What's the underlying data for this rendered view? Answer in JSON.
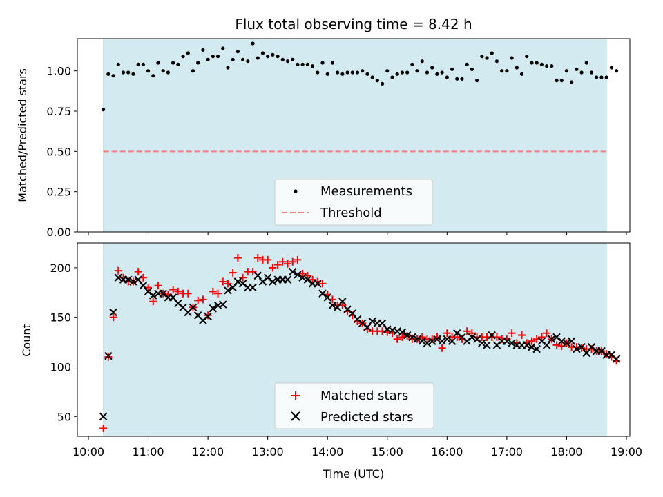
{
  "chart_data": [
    {
      "type": "scatter",
      "title": "Flux total observing time = 8.42 h",
      "ylabel": "Matched/Predicted stars",
      "xlabel": "",
      "x_range": [
        "10:00",
        "19:00"
      ],
      "ylim": [
        0,
        1.2
      ],
      "yticks": [
        "0.00",
        "0.25",
        "0.50",
        "0.75",
        "1.00"
      ],
      "shaded_span": [
        "10:15",
        "18:40"
      ],
      "shade_color": "#add8e6",
      "legend": {
        "placement": "lower-center",
        "entries": [
          "Measurements",
          "Threshold"
        ]
      },
      "series": [
        {
          "name": "Measurements",
          "color": "#000000",
          "marker": "dot",
          "start_time": "10:15",
          "interval_min": 5,
          "values": [
            0.76,
            0.98,
            0.97,
            1.04,
            0.99,
            0.99,
            0.98,
            1.04,
            1.04,
            1.0,
            0.97,
            1.05,
            1.0,
            0.99,
            1.05,
            1.04,
            1.09,
            1.11,
            1.0,
            1.05,
            1.13,
            1.07,
            1.09,
            1.09,
            1.14,
            1.02,
            1.07,
            1.12,
            1.07,
            1.06,
            1.17,
            1.08,
            1.11,
            1.09,
            1.1,
            1.09,
            1.07,
            1.06,
            1.07,
            1.04,
            1.04,
            1.04,
            1.03,
            0.99,
            1.05,
            0.98,
            1.05,
            0.99,
            0.98,
            0.99,
            0.99,
            0.99,
            1.0,
            0.98,
            0.96,
            0.94,
            0.92,
            1.0,
            0.96,
            0.98,
            0.99,
            0.99,
            1.04,
            1.0,
            1.06,
            0.99,
            1.02,
            0.98,
            0.99,
            0.96,
            1.01,
            0.95,
            0.95,
            1.04,
            1.01,
            0.94,
            1.09,
            1.08,
            1.11,
            1.06,
            1.0,
            1.0,
            1.08,
            1.02,
            0.98,
            1.09,
            1.05,
            1.05,
            1.04,
            1.03,
            1.03,
            0.94,
            0.94,
            1.0,
            0.93,
            1.01,
            0.99,
            1.05,
            0.99,
            0.96,
            0.96,
            0.96,
            1.02,
            1.0
          ]
        },
        {
          "name": "Threshold",
          "color": "#f08080",
          "style": "dashed",
          "value": 0.5
        }
      ]
    },
    {
      "type": "scatter",
      "title": "",
      "ylabel": "Count",
      "xlabel": "Time (UTC)",
      "x_range": [
        "10:00",
        "19:00"
      ],
      "xticks": [
        "10:00",
        "11:00",
        "12:00",
        "13:00",
        "14:00",
        "15:00",
        "16:00",
        "17:00",
        "18:00",
        "19:00"
      ],
      "ylim": [
        30,
        225
      ],
      "yticks": [
        "50",
        "100",
        "150",
        "200"
      ],
      "shaded_span": [
        "10:15",
        "18:40"
      ],
      "shade_color": "#add8e6",
      "legend": {
        "placement": "lower-center",
        "entries": [
          "Matched stars",
          "Predicted stars"
        ]
      },
      "series": [
        {
          "name": "Matched stars",
          "color": "#ff0000",
          "marker": "plus",
          "start_time": "10:15",
          "interval_min": 5,
          "values": [
            38,
            110,
            150,
            197,
            190,
            186,
            186,
            196,
            190,
            180,
            166,
            182,
            174,
            173,
            178,
            176,
            174,
            174,
            160,
            167,
            168,
            152,
            176,
            174,
            186,
            184,
            195,
            210,
            190,
            196,
            196,
            210,
            208,
            208,
            200,
            203,
            206,
            204,
            206,
            208,
            194,
            192,
            188,
            186,
            184,
            173,
            168,
            162,
            162,
            156,
            152,
            146,
            144,
            138,
            136,
            136,
            136,
            135,
            134,
            128,
            130,
            131,
            128,
            128,
            130,
            128,
            128,
            130,
            119,
            134,
            130,
            130,
            128,
            136,
            134,
            130,
            130,
            130,
            130,
            130,
            128,
            128,
            134,
            124,
            132,
            124,
            126,
            128,
            130,
            134,
            128,
            122,
            121,
            124,
            120,
            120,
            119,
            118,
            118,
            116,
            116,
            113,
            110,
            106
          ]
        },
        {
          "name": "Predicted stars",
          "color": "#000000",
          "marker": "x",
          "start_time": "10:15",
          "interval_min": 5,
          "values": [
            50,
            111,
            155,
            190,
            188,
            188,
            186,
            188,
            182,
            176,
            172,
            174,
            174,
            170,
            170,
            164,
            160,
            155,
            160,
            152,
            147,
            151,
            159,
            162,
            163,
            177,
            180,
            186,
            184,
            180,
            180,
            192,
            186,
            190,
            186,
            188,
            188,
            188,
            196,
            193,
            190,
            188,
            184,
            184,
            174,
            170,
            162,
            160,
            166,
            158,
            154,
            148,
            144,
            140,
            146,
            144,
            144,
            138,
            137,
            136,
            135,
            132,
            130,
            128,
            126,
            124,
            126,
            128,
            126,
            128,
            126,
            134,
            130,
            126,
            130,
            128,
            124,
            122,
            132,
            122,
            126,
            126,
            124,
            122,
            122,
            122,
            120,
            118,
            126,
            122,
            128,
            130,
            126,
            124,
            126,
            118,
            120,
            114,
            120,
            116,
            116,
            112,
            112,
            108
          ]
        }
      ]
    }
  ]
}
